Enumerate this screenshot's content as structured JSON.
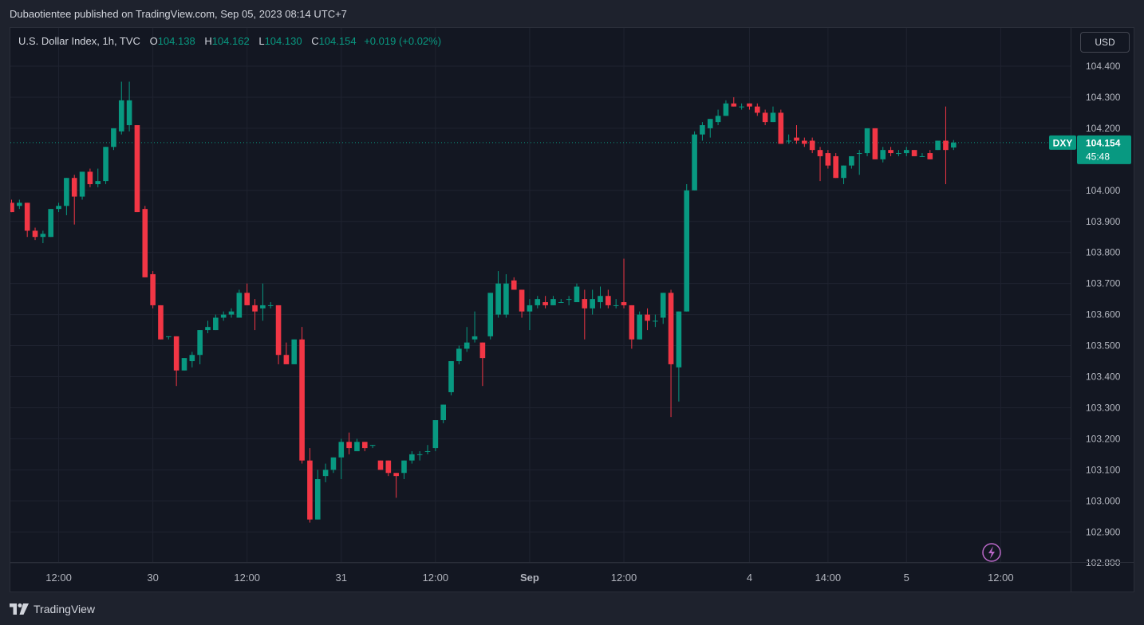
{
  "header": {
    "publisher_text": "Dubaotientee published on TradingView.com, Sep 05, 2023 08:14 UTC+7"
  },
  "legend": {
    "symbol": "U.S. Dollar Index, 1h, TVC",
    "open_label": "O",
    "open": "104.138",
    "high_label": "H",
    "high": "104.162",
    "low_label": "L",
    "low": "104.130",
    "close_label": "C",
    "close": "104.154",
    "change": "+0.019 (+0.02%)"
  },
  "currency": "USD",
  "price_tag": {
    "ticker": "DXY",
    "price": "104.154",
    "countdown": "45:48"
  },
  "footer": {
    "brand": "TradingView"
  },
  "colors": {
    "up": "#089981",
    "down": "#f23645",
    "background": "#131722",
    "grid": "#1f2330",
    "text": "#b2b5be"
  },
  "icons": {
    "lightning": "lightning-icon",
    "logo": "tradingview-logo-icon"
  },
  "chart_data": {
    "type": "candlestick",
    "title": "U.S. Dollar Index, 1h, TVC",
    "current_price": 104.154,
    "y_ticks": [
      "104.400",
      "104.300",
      "104.200",
      "104.000",
      "103.900",
      "103.800",
      "103.700",
      "103.600",
      "103.500",
      "103.400",
      "103.300",
      "103.200",
      "103.100",
      "103.000",
      "102.900",
      "102.800"
    ],
    "x_ticks": [
      {
        "label": "12:00",
        "index": 6
      },
      {
        "label": "30",
        "index": 18
      },
      {
        "label": "12:00",
        "index": 30
      },
      {
        "label": "31",
        "index": 42
      },
      {
        "label": "12:00",
        "index": 54
      },
      {
        "label": "Sep",
        "index": 66
      },
      {
        "label": "12:00",
        "index": 78
      },
      {
        "label": "4",
        "index": 94
      },
      {
        "label": "14:00",
        "index": 104
      },
      {
        "label": "5",
        "index": 114
      },
      {
        "label": "12:00",
        "index": 126
      }
    ],
    "candles": [
      {
        "o": 103.96,
        "h": 103.97,
        "l": 103.93,
        "c": 103.93
      },
      {
        "o": 103.95,
        "h": 103.97,
        "l": 103.94,
        "c": 103.96
      },
      {
        "o": 103.96,
        "h": 103.96,
        "l": 103.85,
        "c": 103.87
      },
      {
        "o": 103.87,
        "h": 103.88,
        "l": 103.84,
        "c": 103.85
      },
      {
        "o": 103.85,
        "h": 103.87,
        "l": 103.83,
        "c": 103.86
      },
      {
        "o": 103.85,
        "h": 103.94,
        "l": 103.85,
        "c": 103.94
      },
      {
        "o": 103.94,
        "h": 103.96,
        "l": 103.93,
        "c": 103.95
      },
      {
        "o": 103.95,
        "h": 104.04,
        "l": 103.92,
        "c": 104.04
      },
      {
        "o": 104.04,
        "h": 104.05,
        "l": 103.89,
        "c": 103.98
      },
      {
        "o": 103.98,
        "h": 104.06,
        "l": 103.97,
        "c": 104.06
      },
      {
        "o": 104.06,
        "h": 104.07,
        "l": 104.01,
        "c": 104.02
      },
      {
        "o": 104.02,
        "h": 104.07,
        "l": 104.01,
        "c": 104.03
      },
      {
        "o": 104.03,
        "h": 104.14,
        "l": 104.02,
        "c": 104.14
      },
      {
        "o": 104.14,
        "h": 104.2,
        "l": 104.13,
        "c": 104.2
      },
      {
        "o": 104.19,
        "h": 104.35,
        "l": 104.18,
        "c": 104.29
      },
      {
        "o": 104.21,
        "h": 104.35,
        "l": 104.19,
        "c": 104.29
      },
      {
        "o": 104.21,
        "h": 104.21,
        "l": 103.93,
        "c": 103.93
      },
      {
        "o": 103.94,
        "h": 103.95,
        "l": 103.72,
        "c": 103.72
      },
      {
        "o": 103.73,
        "h": 103.74,
        "l": 103.62,
        "c": 103.63
      },
      {
        "o": 103.63,
        "h": 103.63,
        "l": 103.52,
        "c": 103.52
      },
      {
        "o": 103.53,
        "h": 103.53,
        "l": 103.52,
        "c": 103.53
      },
      {
        "o": 103.53,
        "h": 103.53,
        "l": 103.37,
        "c": 103.42
      },
      {
        "o": 103.42,
        "h": 103.46,
        "l": 103.42,
        "c": 103.46
      },
      {
        "o": 103.45,
        "h": 103.48,
        "l": 103.43,
        "c": 103.47
      },
      {
        "o": 103.47,
        "h": 103.55,
        "l": 103.44,
        "c": 103.55
      },
      {
        "o": 103.55,
        "h": 103.58,
        "l": 103.54,
        "c": 103.56
      },
      {
        "o": 103.55,
        "h": 103.6,
        "l": 103.55,
        "c": 103.59
      },
      {
        "o": 103.59,
        "h": 103.61,
        "l": 103.58,
        "c": 103.6
      },
      {
        "o": 103.6,
        "h": 103.62,
        "l": 103.59,
        "c": 103.61
      },
      {
        "o": 103.59,
        "h": 103.68,
        "l": 103.59,
        "c": 103.67
      },
      {
        "o": 103.67,
        "h": 103.7,
        "l": 103.63,
        "c": 103.63
      },
      {
        "o": 103.63,
        "h": 103.65,
        "l": 103.55,
        "c": 103.61
      },
      {
        "o": 103.62,
        "h": 103.7,
        "l": 103.58,
        "c": 103.63
      },
      {
        "o": 103.63,
        "h": 103.64,
        "l": 103.62,
        "c": 103.63
      },
      {
        "o": 103.63,
        "h": 103.63,
        "l": 103.44,
        "c": 103.47
      },
      {
        "o": 103.47,
        "h": 103.51,
        "l": 103.44,
        "c": 103.44
      },
      {
        "o": 103.44,
        "h": 103.52,
        "l": 103.44,
        "c": 103.52
      },
      {
        "o": 103.52,
        "h": 103.56,
        "l": 103.12,
        "c": 103.13
      },
      {
        "o": 103.13,
        "h": 103.17,
        "l": 102.93,
        "c": 102.94
      },
      {
        "o": 102.94,
        "h": 103.1,
        "l": 102.94,
        "c": 103.07
      },
      {
        "o": 103.08,
        "h": 103.12,
        "l": 103.06,
        "c": 103.1
      },
      {
        "o": 103.1,
        "h": 103.14,
        "l": 103.09,
        "c": 103.14
      },
      {
        "o": 103.14,
        "h": 103.2,
        "l": 103.07,
        "c": 103.19
      },
      {
        "o": 103.19,
        "h": 103.22,
        "l": 103.15,
        "c": 103.17
      },
      {
        "o": 103.16,
        "h": 103.2,
        "l": 103.16,
        "c": 103.19
      },
      {
        "o": 103.19,
        "h": 103.19,
        "l": 103.16,
        "c": 103.17
      },
      {
        "o": 103.18,
        "h": 103.18,
        "l": 103.17,
        "c": 103.18
      },
      {
        "o": 103.13,
        "h": 103.13,
        "l": 103.1,
        "c": 103.1
      },
      {
        "o": 103.13,
        "h": 103.13,
        "l": 103.08,
        "c": 103.09
      },
      {
        "o": 103.09,
        "h": 103.09,
        "l": 103.01,
        "c": 103.08
      },
      {
        "o": 103.09,
        "h": 103.13,
        "l": 103.07,
        "c": 103.13
      },
      {
        "o": 103.13,
        "h": 103.16,
        "l": 103.12,
        "c": 103.15
      },
      {
        "o": 103.15,
        "h": 103.16,
        "l": 103.13,
        "c": 103.15
      },
      {
        "o": 103.16,
        "h": 103.18,
        "l": 103.15,
        "c": 103.16
      },
      {
        "o": 103.17,
        "h": 103.26,
        "l": 103.16,
        "c": 103.26
      },
      {
        "o": 103.26,
        "h": 103.31,
        "l": 103.25,
        "c": 103.31
      },
      {
        "o": 103.35,
        "h": 103.45,
        "l": 103.34,
        "c": 103.45
      },
      {
        "o": 103.45,
        "h": 103.5,
        "l": 103.44,
        "c": 103.49
      },
      {
        "o": 103.49,
        "h": 103.56,
        "l": 103.48,
        "c": 103.51
      },
      {
        "o": 103.52,
        "h": 103.61,
        "l": 103.51,
        "c": 103.53
      },
      {
        "o": 103.51,
        "h": 103.51,
        "l": 103.37,
        "c": 103.46
      },
      {
        "o": 103.53,
        "h": 103.67,
        "l": 103.52,
        "c": 103.67
      },
      {
        "o": 103.6,
        "h": 103.74,
        "l": 103.59,
        "c": 103.7
      },
      {
        "o": 103.6,
        "h": 103.73,
        "l": 103.59,
        "c": 103.7
      },
      {
        "o": 103.71,
        "h": 103.72,
        "l": 103.68,
        "c": 103.68
      },
      {
        "o": 103.68,
        "h": 103.68,
        "l": 103.59,
        "c": 103.61
      },
      {
        "o": 103.61,
        "h": 103.65,
        "l": 103.55,
        "c": 103.63
      },
      {
        "o": 103.63,
        "h": 103.66,
        "l": 103.62,
        "c": 103.65
      },
      {
        "o": 103.64,
        "h": 103.66,
        "l": 103.62,
        "c": 103.63
      },
      {
        "o": 103.63,
        "h": 103.66,
        "l": 103.63,
        "c": 103.65
      },
      {
        "o": 103.64,
        "h": 103.65,
        "l": 103.64,
        "c": 103.64
      },
      {
        "o": 103.65,
        "h": 103.66,
        "l": 103.63,
        "c": 103.65
      },
      {
        "o": 103.64,
        "h": 103.7,
        "l": 103.64,
        "c": 103.69
      },
      {
        "o": 103.65,
        "h": 103.68,
        "l": 103.52,
        "c": 103.62
      },
      {
        "o": 103.62,
        "h": 103.68,
        "l": 103.6,
        "c": 103.65
      },
      {
        "o": 103.64,
        "h": 103.69,
        "l": 103.62,
        "c": 103.66
      },
      {
        "o": 103.66,
        "h": 103.68,
        "l": 103.62,
        "c": 103.63
      },
      {
        "o": 103.63,
        "h": 103.65,
        "l": 103.62,
        "c": 103.63
      },
      {
        "o": 103.64,
        "h": 103.78,
        "l": 103.62,
        "c": 103.63
      },
      {
        "o": 103.63,
        "h": 103.63,
        "l": 103.49,
        "c": 103.52
      },
      {
        "o": 103.52,
        "h": 103.61,
        "l": 103.52,
        "c": 103.6
      },
      {
        "o": 103.6,
        "h": 103.62,
        "l": 103.55,
        "c": 103.58
      },
      {
        "o": 103.58,
        "h": 103.6,
        "l": 103.56,
        "c": 103.58
      },
      {
        "o": 103.59,
        "h": 103.67,
        "l": 103.57,
        "c": 103.67
      },
      {
        "o": 103.67,
        "h": 103.68,
        "l": 103.27,
        "c": 103.44
      },
      {
        "o": 103.43,
        "h": 103.61,
        "l": 103.32,
        "c": 103.61
      },
      {
        "o": 103.61,
        "h": 104.02,
        "l": 103.61,
        "c": 104.0
      },
      {
        "o": 104.0,
        "h": 104.19,
        "l": 104.0,
        "c": 104.18
      },
      {
        "o": 104.18,
        "h": 104.22,
        "l": 104.16,
        "c": 104.21
      },
      {
        "o": 104.2,
        "h": 104.23,
        "l": 104.17,
        "c": 104.23
      },
      {
        "o": 104.22,
        "h": 104.26,
        "l": 104.21,
        "c": 104.24
      },
      {
        "o": 104.24,
        "h": 104.29,
        "l": 104.24,
        "c": 104.28
      },
      {
        "o": 104.28,
        "h": 104.3,
        "l": 104.27,
        "c": 104.27
      },
      {
        "o": 104.27,
        "h": 104.28,
        "l": 104.26,
        "c": 104.27
      },
      {
        "o": 104.28,
        "h": 104.28,
        "l": 104.26,
        "c": 104.27
      },
      {
        "o": 104.27,
        "h": 104.28,
        "l": 104.24,
        "c": 104.25
      },
      {
        "o": 104.25,
        "h": 104.26,
        "l": 104.21,
        "c": 104.22
      },
      {
        "o": 104.22,
        "h": 104.27,
        "l": 104.22,
        "c": 104.25
      },
      {
        "o": 104.25,
        "h": 104.26,
        "l": 104.15,
        "c": 104.15
      },
      {
        "o": 104.16,
        "h": 104.18,
        "l": 104.15,
        "c": 104.16
      },
      {
        "o": 104.17,
        "h": 104.21,
        "l": 104.15,
        "c": 104.16
      },
      {
        "o": 104.16,
        "h": 104.17,
        "l": 104.14,
        "c": 104.15
      },
      {
        "o": 104.16,
        "h": 104.17,
        "l": 104.12,
        "c": 104.13
      },
      {
        "o": 104.13,
        "h": 104.14,
        "l": 104.03,
        "c": 104.11
      },
      {
        "o": 104.12,
        "h": 104.13,
        "l": 104.07,
        "c": 104.08
      },
      {
        "o": 104.11,
        "h": 104.12,
        "l": 104.04,
        "c": 104.04
      },
      {
        "o": 104.04,
        "h": 104.08,
        "l": 104.02,
        "c": 104.08
      },
      {
        "o": 104.08,
        "h": 104.11,
        "l": 104.07,
        "c": 104.11
      },
      {
        "o": 104.12,
        "h": 104.13,
        "l": 104.05,
        "c": 104.12
      },
      {
        "o": 104.12,
        "h": 104.2,
        "l": 104.11,
        "c": 104.2
      },
      {
        "o": 104.2,
        "h": 104.2,
        "l": 104.1,
        "c": 104.1
      },
      {
        "o": 104.1,
        "h": 104.14,
        "l": 104.09,
        "c": 104.13
      },
      {
        "o": 104.13,
        "h": 104.14,
        "l": 104.11,
        "c": 104.12
      },
      {
        "o": 104.12,
        "h": 104.13,
        "l": 104.11,
        "c": 104.12
      },
      {
        "o": 104.12,
        "h": 104.14,
        "l": 104.11,
        "c": 104.13
      },
      {
        "o": 104.13,
        "h": 104.13,
        "l": 104.11,
        "c": 104.11
      },
      {
        "o": 104.11,
        "h": 104.12,
        "l": 104.11,
        "c": 104.11
      },
      {
        "o": 104.12,
        "h": 104.13,
        "l": 104.1,
        "c": 104.1
      },
      {
        "o": 104.13,
        "h": 104.16,
        "l": 104.13,
        "c": 104.16
      },
      {
        "o": 104.16,
        "h": 104.27,
        "l": 104.02,
        "c": 104.13
      },
      {
        "o": 104.138,
        "h": 104.162,
        "l": 104.13,
        "c": 104.154
      }
    ]
  }
}
